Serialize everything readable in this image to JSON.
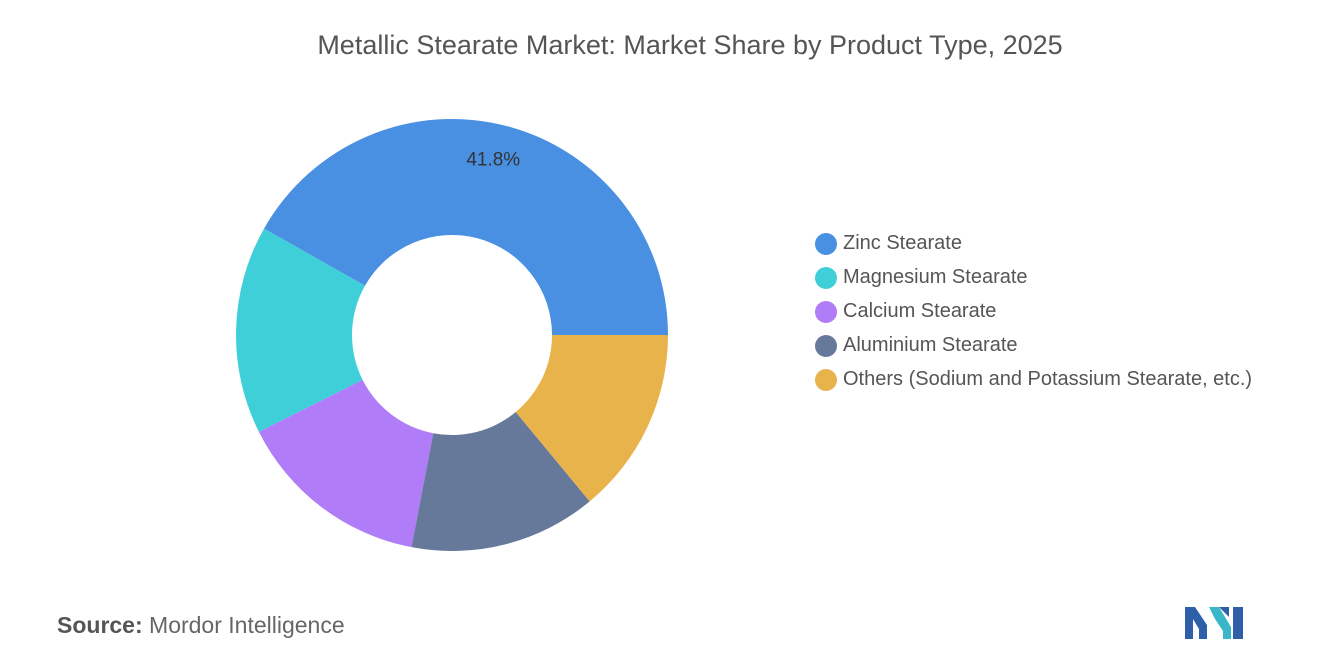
{
  "chart_data": {
    "type": "pie",
    "title": "Metallic Stearate Market: Market Share by Product Type, 2025",
    "donut": true,
    "categories": [
      "Zinc Stearate",
      "Magnesium Stearate",
      "Calcium Stearate",
      "Aluminium Stearate",
      "Others (Sodium and Potassium Stearate, etc.)"
    ],
    "values": [
      41.8,
      15.6,
      14.6,
      14.0,
      14.0
    ],
    "colors": [
      "#4a90e2",
      "#3ecfd9",
      "#b07cf7",
      "#66799a",
      "#e9b34c"
    ],
    "data_labels": [
      "41.8%",
      "",
      "",
      "",
      ""
    ],
    "legend_position": "right"
  },
  "source": {
    "label": "Source:",
    "text": "Mordor Intelligence"
  },
  "logo": {
    "name": "mordor-intelligence-logo"
  }
}
